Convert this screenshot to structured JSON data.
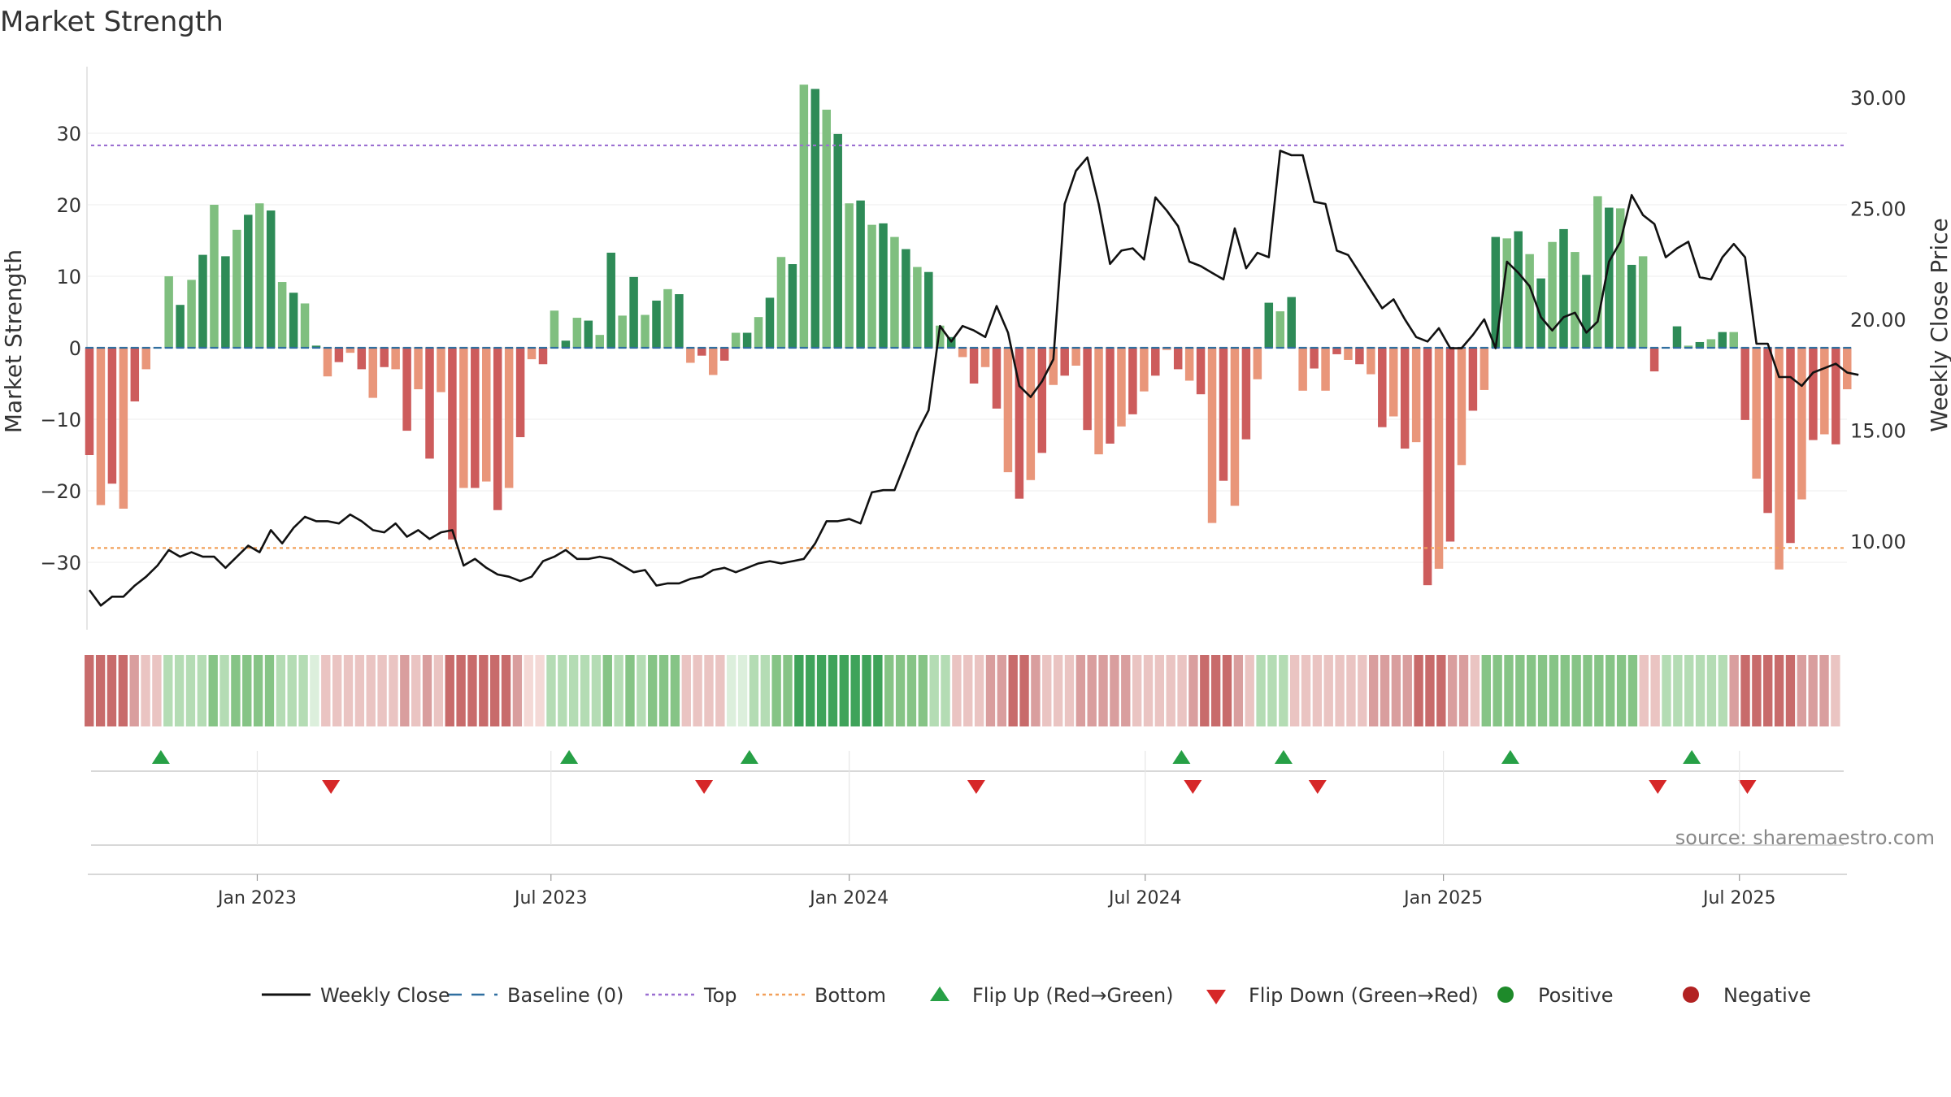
{
  "chart_data": {
    "type": "bar",
    "title": "Market Strength",
    "ylabel_left": "Market Strength",
    "ylabel_right": "Weekly Close Price",
    "ylim_left": [
      -39,
      39
    ],
    "ylim_right": [
      6.5,
      31.0
    ],
    "yticks_left": [
      "30",
      "20",
      "10",
      "0",
      "−10",
      "−20",
      "−30"
    ],
    "yticks_left_values": [
      30,
      20,
      10,
      0,
      -10,
      -20,
      -30
    ],
    "yticks_right": [
      "30.00",
      "25.00",
      "20.00",
      "15.00",
      "10.00"
    ],
    "yticks_right_values": [
      30,
      25,
      20,
      15,
      10
    ],
    "top_line": 28.3,
    "bottom_line": -28.0,
    "xticks": [
      "Jan 2023",
      "Jul 2023",
      "Jan 2024",
      "Jul 2024",
      "Jan 2025",
      "Jul 2025"
    ],
    "xticks_week_index": [
      14.8,
      40.7,
      67.0,
      93.1,
      119.4,
      145.5
    ],
    "strength": [
      -15,
      -22,
      -19,
      -22.5,
      -7.5,
      -3,
      0,
      10,
      6,
      9.5,
      13,
      20,
      12.8,
      16.5,
      18.6,
      20.2,
      19.2,
      9.2,
      7.7,
      6.2,
      0.3,
      -4,
      -2,
      -0.7,
      -3,
      -7,
      -2.7,
      -3,
      -11.6,
      -5.8,
      -15.5,
      -6.2,
      -26.8,
      -19.6,
      -19.6,
      -18.7,
      -22.7,
      -19.6,
      -12.5,
      -1.6,
      -2.3,
      5.2,
      1,
      4.2,
      3.8,
      1.8,
      13.3,
      4.5,
      9.9,
      4.6,
      6.6,
      8.2,
      7.5,
      -2.1,
      -1.1,
      -3.8,
      -1.8,
      2.1,
      2.1,
      4.3,
      7,
      12.7,
      11.7,
      36.8,
      36.2,
      33.3,
      29.9,
      20.2,
      20.6,
      17.2,
      17.4,
      15.5,
      13.8,
      11.3,
      10.6,
      3.1,
      1.5,
      -1.3,
      -5,
      -2.7,
      -8.5,
      -17.4,
      -21.1,
      -18.5,
      -14.7,
      -5.2,
      -3.9,
      -2.5,
      -11.5,
      -14.9,
      -13.4,
      -11,
      -9.3,
      -6.1,
      -3.9,
      -0.3,
      -3,
      -4.6,
      -6.5,
      -24.5,
      -18.6,
      -22.1,
      -12.8,
      -4.4,
      6.3,
      5.1,
      7.1,
      -6,
      -2.9,
      -6,
      -0.9,
      -1.7,
      -2.3,
      -3.7,
      -11.1,
      -9.6,
      -14.1,
      -13.2,
      -33.2,
      -30.9,
      -27.1,
      -16.4,
      -8.8,
      -5.9,
      15.5,
      15.3,
      16.3,
      13.1,
      9.7,
      14.8,
      16.6,
      13.4,
      10.2,
      21.2,
      19.6,
      19.5,
      11.6,
      12.8,
      -3.3,
      0,
      3,
      0.3,
      0.8,
      1.2,
      2.2,
      2.2,
      -10.1,
      -18.3,
      -23.1,
      -31,
      -27.3,
      -21.2,
      -12.9,
      -12.1,
      -13.5,
      -5.8
    ],
    "close": [
      7.8,
      7.1,
      7.5,
      7.5,
      8,
      8.4,
      8.9,
      9.6,
      9.3,
      9.5,
      9.3,
      9.3,
      8.8,
      9.3,
      9.8,
      9.5,
      10.5,
      9.9,
      10.6,
      11.1,
      10.9,
      10.9,
      10.8,
      11.2,
      10.9,
      10.5,
      10.4,
      10.8,
      10.2,
      10.5,
      10.1,
      10.4,
      10.5,
      8.9,
      9.2,
      8.8,
      8.5,
      8.4,
      8.2,
      8.4,
      9.1,
      9.3,
      9.6,
      9.2,
      9.2,
      9.3,
      9.2,
      8.9,
      8.6,
      8.7,
      8,
      8.1,
      8.1,
      8.3,
      8.4,
      8.7,
      8.8,
      8.6,
      8.8,
      9,
      9.1,
      9,
      9.1,
      9.2,
      9.9,
      10.9,
      10.9,
      11,
      10.8,
      12.2,
      12.3,
      12.3,
      13.6,
      14.9,
      15.9,
      19.7,
      19,
      19.7,
      19.5,
      19.2,
      20.6,
      19.4,
      17,
      16.5,
      17.2,
      18.2,
      25.2,
      26.7,
      27.3,
      25.2,
      22.5,
      23.1,
      23.2,
      22.7,
      25.5,
      24.9,
      24.2,
      22.6,
      22.4,
      22.1,
      21.8,
      24.1,
      22.3,
      23,
      22.8,
      27.6,
      27.4,
      27.4,
      25.3,
      25.2,
      23.1,
      22.9,
      22.1,
      21.3,
      20.5,
      20.9,
      20,
      19.2,
      19,
      19.6,
      18.7,
      18.7,
      19.3,
      20,
      18.7,
      22.6,
      22.1,
      21.5,
      20.1,
      19.5,
      20.1,
      20.3,
      19.4,
      19.9,
      22.6,
      23.5,
      25.6,
      24.7,
      24.3,
      22.8,
      23.2,
      23.5,
      21.9,
      21.8,
      22.8,
      23.4,
      22.8,
      18.9,
      18.9,
      17.4,
      17.4,
      17,
      17.6,
      17.8,
      18,
      17.6,
      17.5
    ],
    "heat_levels": [
      3,
      3,
      3,
      3,
      2,
      1,
      1,
      1,
      1,
      1,
      1,
      2,
      1,
      2,
      2,
      2,
      2,
      1,
      1,
      1,
      0,
      1,
      1,
      1,
      1,
      1,
      1,
      1,
      2,
      1,
      2,
      1,
      3,
      3,
      3,
      3,
      3,
      3,
      2,
      0,
      0,
      1,
      1,
      1,
      1,
      1,
      2,
      1,
      2,
      1,
      2,
      2,
      2,
      1,
      1,
      1,
      1,
      0,
      0,
      1,
      1,
      2,
      2,
      3,
      3,
      3,
      3,
      3,
      3,
      3,
      3,
      2,
      2,
      2,
      2,
      1,
      1,
      1,
      1,
      1,
      2,
      2,
      3,
      3,
      2,
      1,
      1,
      1,
      2,
      2,
      2,
      2,
      2,
      1,
      1,
      1,
      1,
      1,
      2,
      3,
      3,
      3,
      2,
      1,
      1,
      1,
      1,
      1,
      1,
      1,
      1,
      1,
      1,
      1,
      2,
      2,
      2,
      2,
      3,
      3,
      3,
      2,
      2,
      1,
      2,
      2,
      2,
      2,
      2,
      2,
      2,
      2,
      2,
      2,
      2,
      2,
      2,
      2,
      1,
      1,
      1,
      1,
      1,
      1,
      1,
      1,
      2,
      3,
      3,
      3,
      3,
      3,
      2,
      2,
      2,
      1
    ],
    "flip_up_week_index": [
      6.3,
      42.3,
      58.2,
      96.3,
      105.3,
      125.3,
      141.3
    ],
    "flip_down_week_index": [
      21.3,
      54.2,
      78.2,
      97.3,
      108.3,
      138.3,
      146.2
    ],
    "source": "source: sharemaestro.com",
    "legend": [
      {
        "label": "Weekly Close",
        "kind": "line",
        "color": "#111111"
      },
      {
        "label": "Baseline (0)",
        "kind": "dash",
        "color": "#2f6fa0"
      },
      {
        "label": "Top",
        "kind": "dot",
        "color": "#9b6fd1"
      },
      {
        "label": "Bottom",
        "kind": "dot",
        "color": "#f2a05a"
      },
      {
        "label": "Flip Up (Red→Green)",
        "kind": "tri-up",
        "color": "#27a046"
      },
      {
        "label": "Flip Down (Green→Red)",
        "kind": "tri-down",
        "color": "#d62728"
      },
      {
        "label": "Positive",
        "kind": "circle",
        "color": "#1e8a2a"
      },
      {
        "label": "Negative",
        "kind": "circle",
        "color": "#b22222"
      }
    ]
  }
}
